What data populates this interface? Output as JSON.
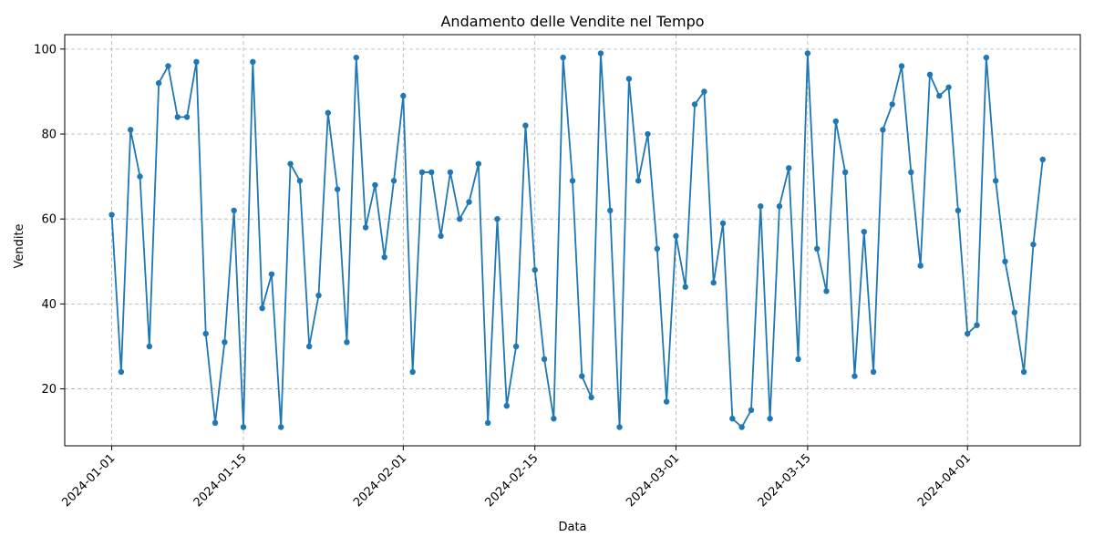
{
  "chart_data": {
    "type": "line",
    "title": "Andamento delle Vendite nel Tempo",
    "xlabel": "Data",
    "ylabel": "Vendite",
    "x_start": "2024-01-01",
    "x_end": "2024-04-08",
    "xlim": [
      "2023-12-27",
      "2024-04-13"
    ],
    "ylim": [
      6.6,
      103.4
    ],
    "grid": true,
    "line_color": "#1f77b4",
    "marker": "circle",
    "xticks": [
      "2024-01-01",
      "2024-01-15",
      "2024-02-01",
      "2024-02-15",
      "2024-03-01",
      "2024-03-15",
      "2024-04-01"
    ],
    "yticks": [
      20,
      40,
      60,
      80,
      100
    ],
    "series": [
      {
        "values": [
          61,
          24,
          81,
          70,
          30,
          92,
          96,
          84,
          84,
          97,
          33,
          12,
          31,
          62,
          11,
          97,
          39,
          47,
          11,
          73,
          69,
          30,
          42,
          85,
          67,
          31,
          98,
          58,
          68,
          51,
          69,
          89,
          24,
          71,
          71,
          56,
          71,
          60,
          64,
          73,
          12,
          60,
          16,
          30,
          82,
          48,
          27,
          13,
          98,
          69,
          23,
          18,
          99,
          62,
          11,
          93,
          69,
          80,
          53,
          17,
          56,
          44,
          87,
          90,
          45,
          59,
          13,
          11,
          15,
          63,
          13,
          63,
          72,
          27,
          99,
          53,
          43,
          83,
          71,
          23,
          57,
          24,
          81,
          87,
          96,
          71,
          49,
          94,
          89,
          91,
          62,
          33,
          35,
          98,
          69,
          50,
          38,
          24,
          54,
          74
        ]
      }
    ]
  }
}
